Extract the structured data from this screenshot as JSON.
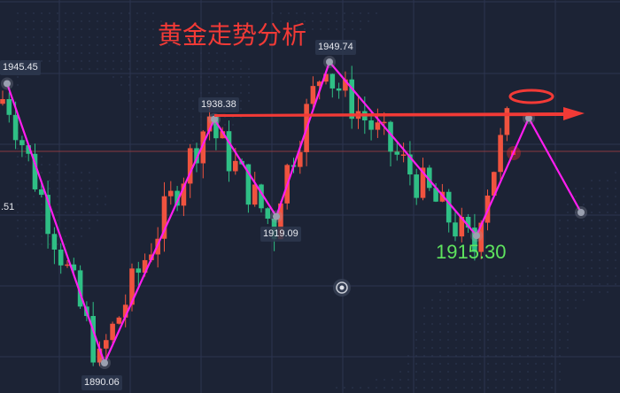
{
  "title": "黄金走势分析",
  "colors": {
    "background": "#1c2335",
    "up": "#f0533f",
    "down": "#2fbf85",
    "zigzag": "#ff1df0",
    "arrow": "#f23a36",
    "highlight_label": "#5ee35e"
  },
  "chart_data": {
    "type": "candlestick",
    "title": "黄金走势分析",
    "grid": true,
    "pivot_labels": [
      "1945.45",
      "1938.38",
      "1949.74",
      "1919.09",
      "1890.06",
      "1915.30",
      ".51"
    ],
    "zigzag": [
      {
        "label": "1945.45",
        "price": 1945.45
      },
      {
        "label": "1890.06",
        "price": 1890.06
      },
      {
        "label": "1938.38",
        "price": 1938.38
      },
      {
        "label": "1919.09",
        "price": 1919.09
      },
      {
        "label": "1949.74",
        "price": 1949.74
      },
      {
        "label": "1915.30",
        "price": 1915.3
      },
      {
        "label": "",
        "price": 1938.6
      },
      {
        "label": "",
        "price": 1919.9
      }
    ],
    "left_edge_label": ".51",
    "resistance_price": 1938.38,
    "current_price_line": 1931.3,
    "highlight_label": "1915.30"
  }
}
